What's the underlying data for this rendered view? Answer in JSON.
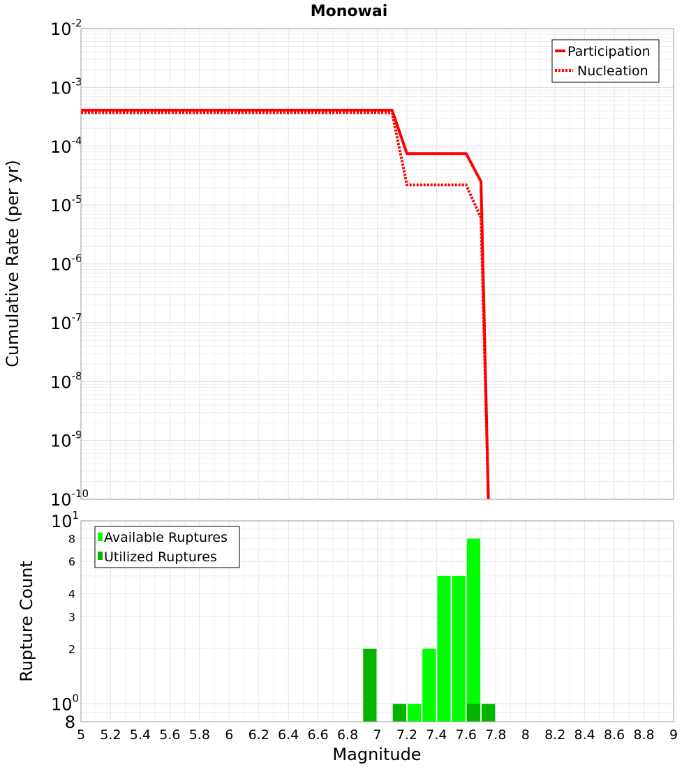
{
  "chart_data": [
    {
      "type": "line",
      "title": "Monowai",
      "xlabel": "",
      "ylabel": "Cumulative Rate (per yr)",
      "xlim": [
        5,
        9
      ],
      "ylim": [
        1e-10,
        0.01
      ],
      "yscale": "log",
      "y_ticks": [
        {
          "base": "10",
          "exp": "-2",
          "value": 0.01
        },
        {
          "base": "10",
          "exp": "-3",
          "value": 0.001
        },
        {
          "base": "10",
          "exp": "-4",
          "value": 0.0001
        },
        {
          "base": "10",
          "exp": "-5",
          "value": 1e-05
        },
        {
          "base": "10",
          "exp": "-6",
          "value": 1e-06
        },
        {
          "base": "10",
          "exp": "-7",
          "value": 1e-07
        },
        {
          "base": "10",
          "exp": "-8",
          "value": 1e-08
        },
        {
          "base": "10",
          "exp": "-9",
          "value": 1e-09
        },
        {
          "base": "10",
          "exp": "-10",
          "value": 1e-10
        }
      ],
      "legend_position": "top-right",
      "series": [
        {
          "name": "Participation",
          "style": "solid",
          "color": "#ff0000",
          "x": [
            5.0,
            5.1,
            5.2,
            5.3,
            5.4,
            5.5,
            5.6,
            5.7,
            5.8,
            5.9,
            6.0,
            6.1,
            6.2,
            6.3,
            6.4,
            6.5,
            6.6,
            6.7,
            6.8,
            6.9,
            7.0,
            7.1,
            7.2,
            7.3,
            7.4,
            7.5,
            7.6,
            7.7,
            7.75
          ],
          "y": [
            0.00041,
            0.00041,
            0.00041,
            0.00041,
            0.00041,
            0.00041,
            0.00041,
            0.00041,
            0.00041,
            0.00041,
            0.00041,
            0.00041,
            0.00041,
            0.00041,
            0.00041,
            0.00041,
            0.00041,
            0.00041,
            0.00041,
            0.00041,
            0.00041,
            0.00041,
            7.5e-05,
            7.5e-05,
            7.5e-05,
            7.5e-05,
            7.5e-05,
            2.5e-05,
            1e-10
          ]
        },
        {
          "name": "Nucleation",
          "style": "dotted",
          "color": "#ff0000",
          "x": [
            5.0,
            5.1,
            5.2,
            5.3,
            5.4,
            5.5,
            5.6,
            5.7,
            5.8,
            5.9,
            6.0,
            6.1,
            6.2,
            6.3,
            6.4,
            6.5,
            6.6,
            6.7,
            6.8,
            6.9,
            7.0,
            7.1,
            7.2,
            7.3,
            7.4,
            7.5,
            7.6,
            7.7,
            7.75
          ],
          "y": [
            0.00037,
            0.00037,
            0.00037,
            0.00037,
            0.00037,
            0.00037,
            0.00037,
            0.00037,
            0.00037,
            0.00037,
            0.00037,
            0.00037,
            0.00037,
            0.00037,
            0.00037,
            0.00037,
            0.00037,
            0.00037,
            0.00037,
            0.00037,
            0.00037,
            0.00037,
            2.2e-05,
            2.2e-05,
            2.2e-05,
            2.2e-05,
            2.2e-05,
            6e-06,
            1e-10
          ]
        }
      ]
    },
    {
      "type": "bar",
      "title": "",
      "xlabel": "Magnitude",
      "ylabel": "Rupture Count",
      "xlim": [
        5,
        9
      ],
      "ylim": [
        0.8,
        10
      ],
      "yscale": "log",
      "bin_width": 0.1,
      "x_ticks": [
        "5",
        "5.2",
        "5.4",
        "5.6",
        "5.8",
        "6",
        "6.2",
        "6.4",
        "6.6",
        "6.8",
        "7",
        "7.2",
        "7.4",
        "7.6",
        "7.8",
        "8",
        "8.2",
        "8.4",
        "8.6",
        "8.8",
        "9"
      ],
      "y_ticks_major": [
        {
          "base": "10",
          "exp": "1",
          "value": 10
        },
        {
          "base": "10",
          "exp": "0",
          "value": 1
        }
      ],
      "y_ticks_minor": [
        {
          "label": "8",
          "value": 8
        },
        {
          "label": "6",
          "value": 6
        },
        {
          "label": "4",
          "value": 4
        },
        {
          "label": "3",
          "value": 3
        },
        {
          "label": "2",
          "value": 2
        }
      ],
      "y_bottom_label": {
        "label": "8",
        "value": 0.8
      },
      "legend_position": "top-left",
      "series": [
        {
          "name": "Available Ruptures",
          "color": "#00ff00",
          "x": [
            7.25,
            7.35,
            7.45,
            7.55,
            7.65
          ],
          "values": [
            1,
            2,
            5,
            5,
            8
          ]
        },
        {
          "name": "Utilized Ruptures",
          "color": "#00b400",
          "x": [
            6.95,
            7.15,
            7.65,
            7.75
          ],
          "values": [
            2,
            1,
            1,
            1
          ]
        }
      ]
    }
  ]
}
